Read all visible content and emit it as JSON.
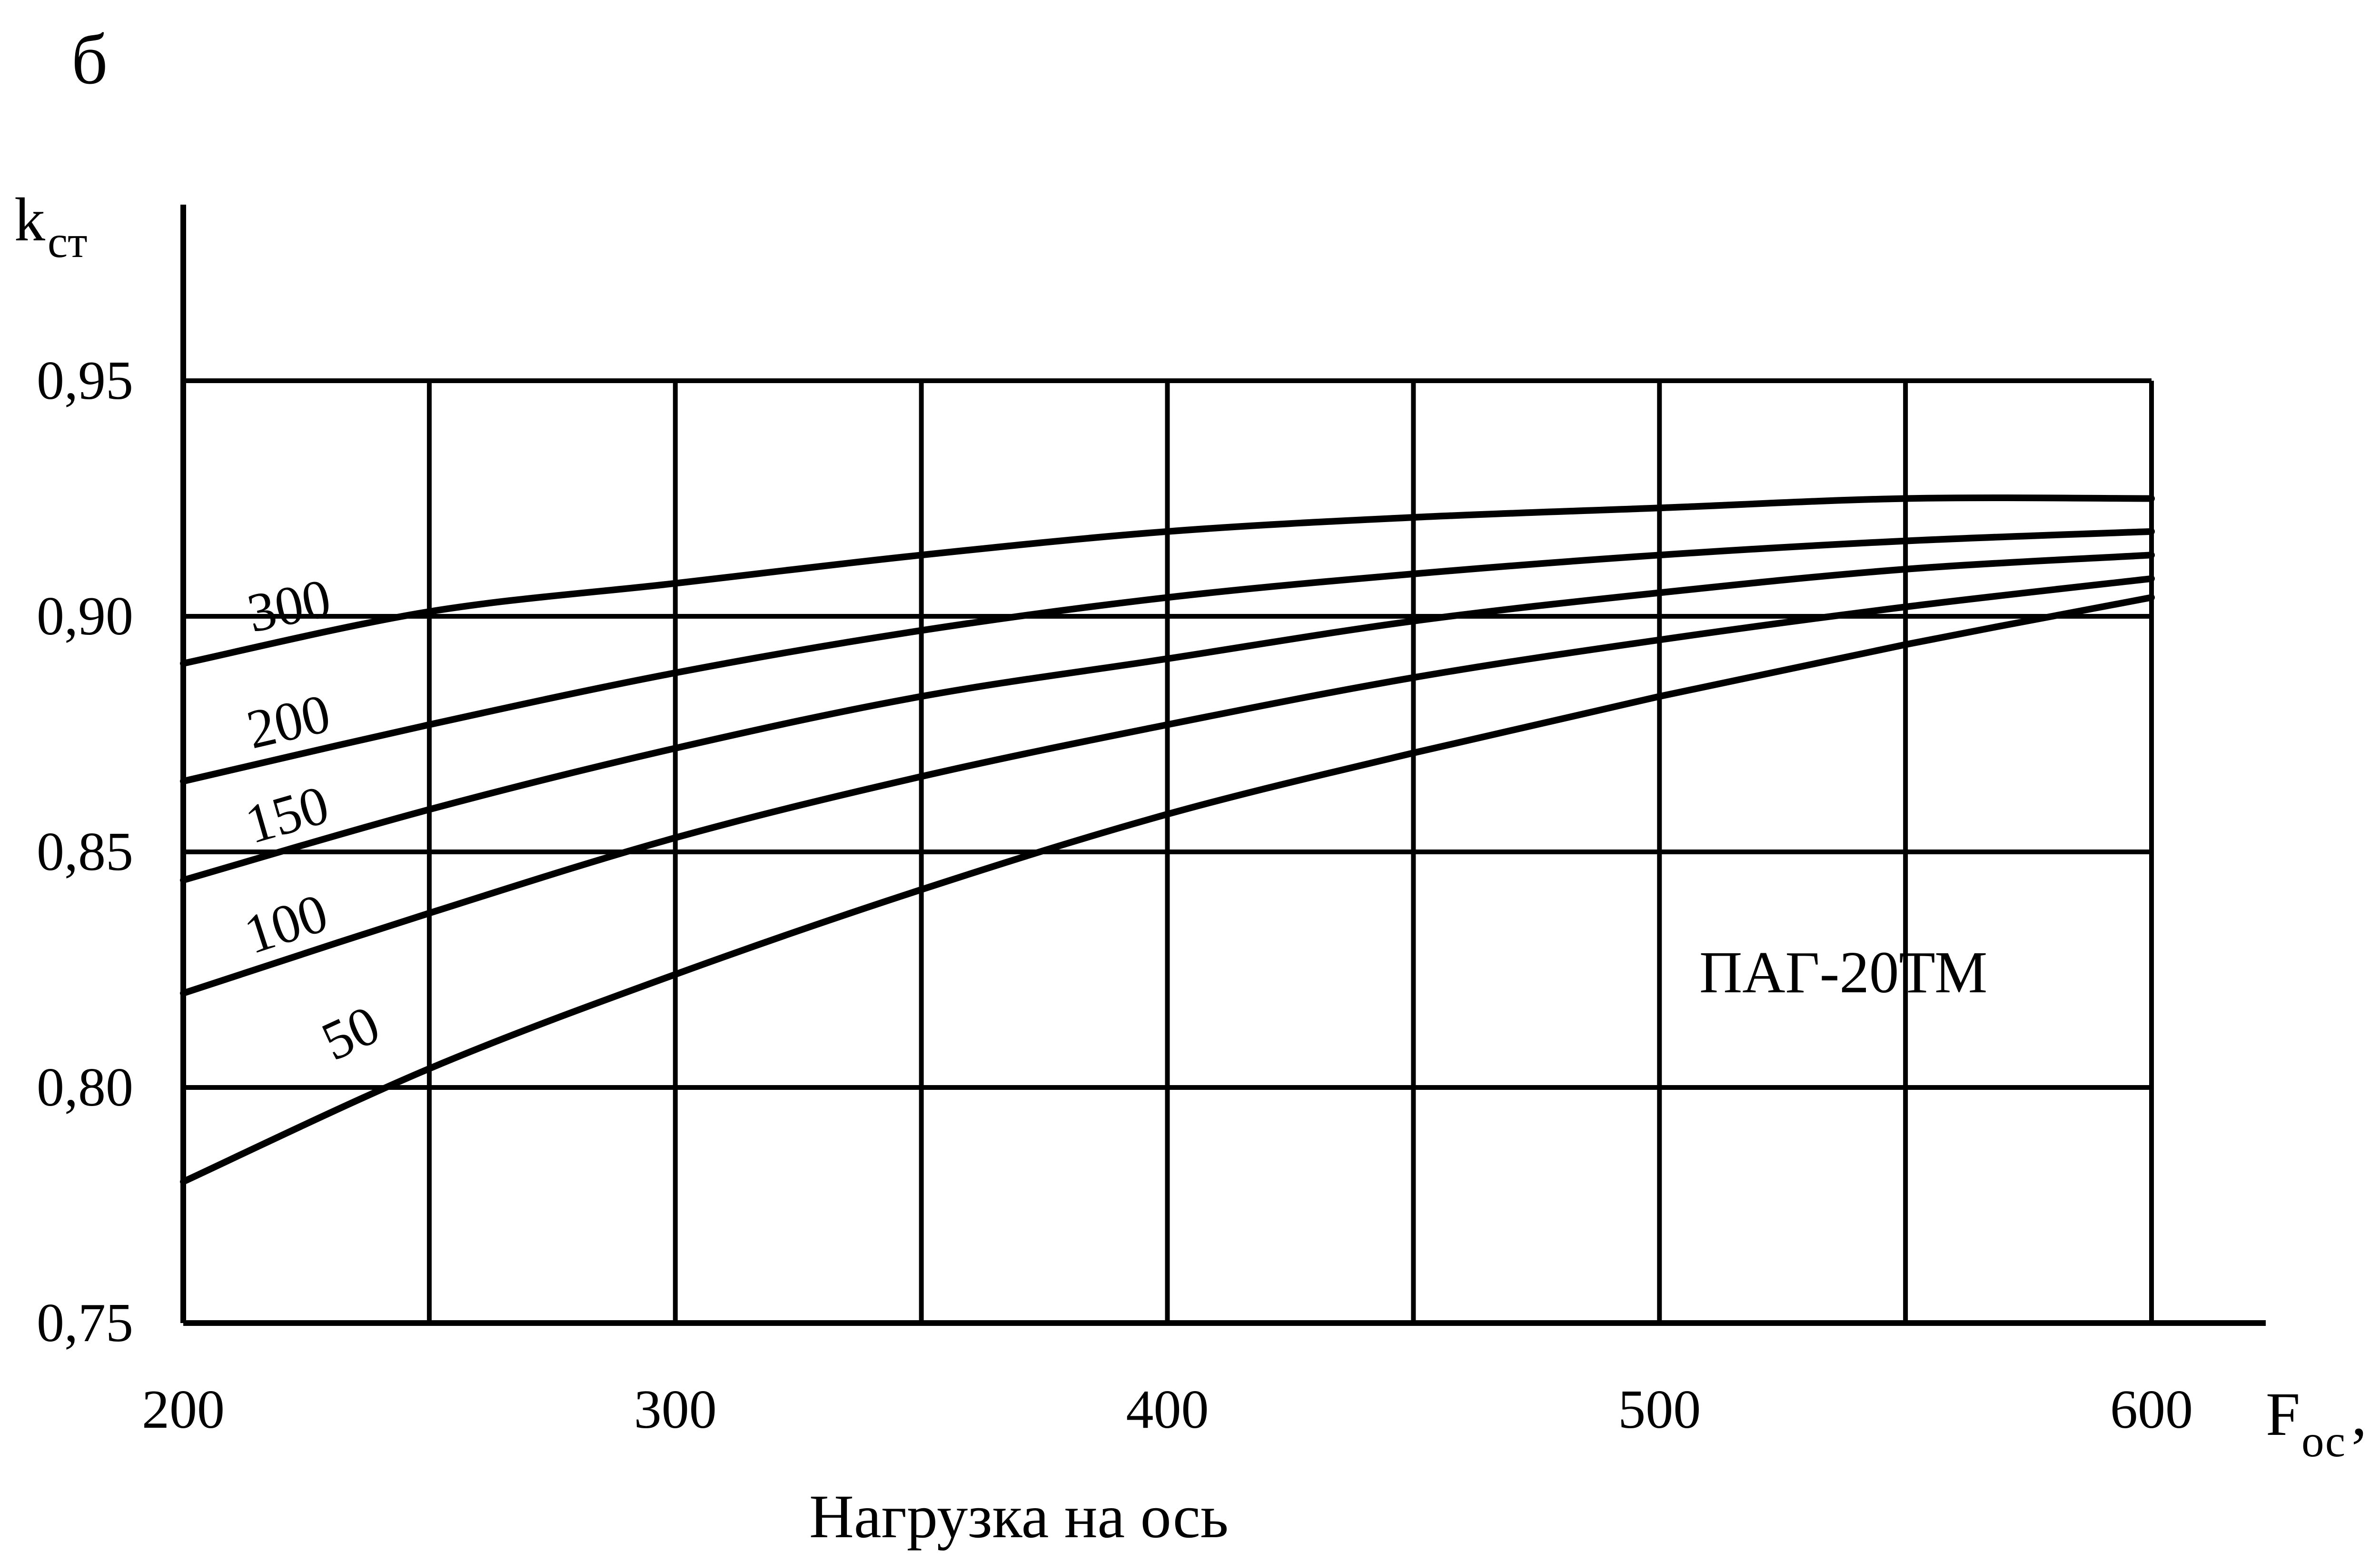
{
  "chart_data": {
    "type": "line",
    "panel_label": "б",
    "ylabel": "k",
    "ylabel_sub": "ст",
    "xlabel": "F",
    "xlabel_sub": "ос",
    "xlabel_unit": ", кН",
    "xlabel_caption": "Нагрузка на ось",
    "annotation": "ПАГ-20ТМ",
    "xlim": [
      200,
      600
    ],
    "ylim": [
      0.75,
      0.95
    ],
    "x_ticks": [
      "200",
      "300",
      "400",
      "500",
      "600"
    ],
    "y_ticks": [
      "0,95",
      "0,90",
      "0,85",
      "0,80",
      "0,75"
    ],
    "x_ticks_values": [
      200,
      300,
      400,
      500,
      600
    ],
    "y_ticks_values": [
      0.95,
      0.9,
      0.85,
      0.8,
      0.75
    ],
    "grid": true,
    "x": [
      200,
      250,
      300,
      350,
      400,
      450,
      500,
      550,
      600
    ],
    "series": [
      {
        "name": "300",
        "values": [
          0.89,
          0.901,
          0.907,
          0.913,
          0.918,
          0.921,
          0.923,
          0.925,
          0.925
        ]
      },
      {
        "name": "200",
        "values": [
          0.865,
          0.877,
          0.888,
          0.897,
          0.904,
          0.909,
          0.913,
          0.916,
          0.918
        ]
      },
      {
        "name": "150",
        "values": [
          0.844,
          0.859,
          0.872,
          0.883,
          0.891,
          0.899,
          0.905,
          0.91,
          0.913
        ]
      },
      {
        "name": "100",
        "values": [
          0.82,
          0.837,
          0.853,
          0.866,
          0.877,
          0.887,
          0.895,
          0.902,
          0.908
        ]
      },
      {
        "name": "50",
        "values": [
          0.78,
          0.804,
          0.824,
          0.842,
          0.858,
          0.871,
          0.883,
          0.894,
          0.904
        ]
      }
    ]
  }
}
